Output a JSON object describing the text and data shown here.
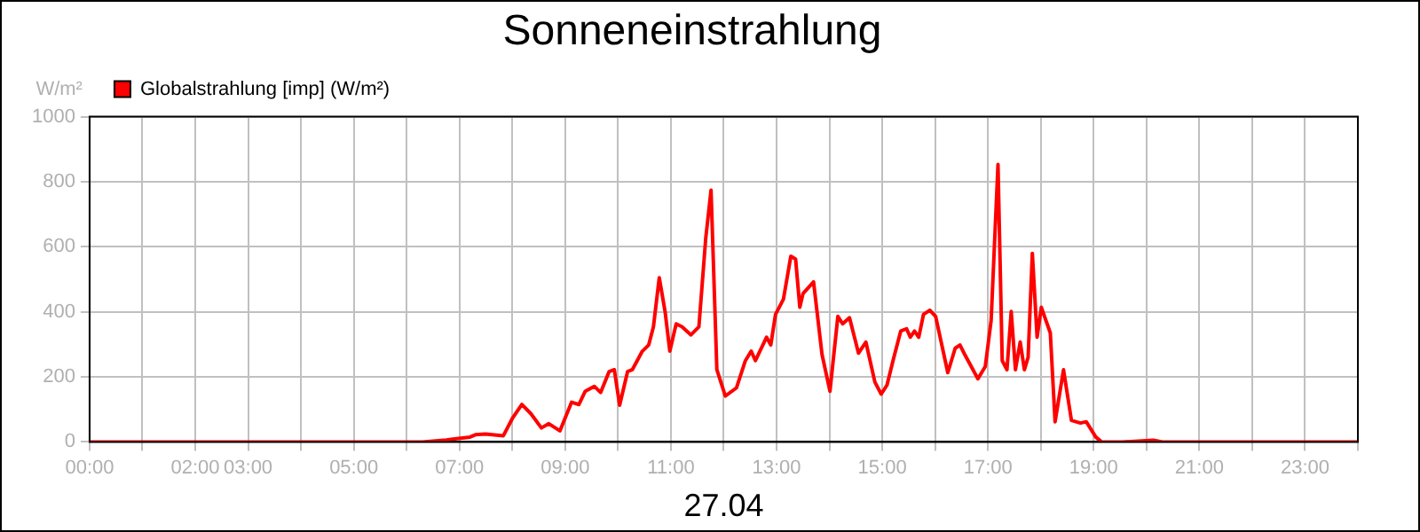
{
  "chart_data": {
    "type": "line",
    "title": "Sonneneinstrahlung",
    "xlabel": "27.04",
    "ylabel": "W/m²",
    "x": [
      0,
      6.3,
      6.75,
      7.2,
      7.3,
      7.49,
      7.83,
      8.0,
      8.18,
      8.35,
      8.55,
      8.69,
      8.9,
      9.12,
      9.26,
      9.38,
      9.55,
      9.67,
      9.83,
      9.93,
      10.03,
      10.18,
      10.27,
      10.46,
      10.58,
      10.67,
      10.78,
      10.89,
      10.98,
      11.1,
      11.21,
      11.38,
      11.53,
      11.66,
      11.76,
      11.87,
      12.03,
      12.24,
      12.41,
      12.52,
      12.6,
      12.81,
      12.89,
      12.98,
      13.13,
      13.27,
      13.36,
      13.44,
      13.5,
      13.7,
      13.86,
      14.01,
      14.16,
      14.25,
      14.38,
      14.55,
      14.69,
      14.86,
      14.98,
      15.09,
      15.21,
      15.35,
      15.46,
      15.53,
      15.61,
      15.69,
      15.78,
      15.9,
      16.01,
      16.24,
      16.38,
      16.47,
      16.56,
      16.81,
      16.95,
      17.06,
      17.19,
      17.27,
      17.36,
      17.44,
      17.52,
      17.61,
      17.69,
      17.76,
      17.84,
      17.93,
      18.01,
      18.18,
      18.27,
      18.43,
      18.58,
      18.75,
      18.86,
      19.04,
      19.15,
      19.55,
      20.13,
      20.3,
      24
    ],
    "series": [
      {
        "name": "Globalstrahlung [imp] (W/m²)",
        "color": "#ff0000",
        "values": [
          0,
          0,
          6,
          15,
          22,
          24,
          19,
          72,
          115,
          87,
          43,
          56,
          34,
          122,
          115,
          156,
          171,
          152,
          216,
          222,
          113,
          216,
          222,
          279,
          298,
          354,
          505,
          401,
          279,
          363,
          354,
          329,
          354,
          627,
          774,
          222,
          141,
          166,
          250,
          279,
          250,
          322,
          298,
          392,
          439,
          571,
          562,
          414,
          456,
          492,
          269,
          156,
          386,
          363,
          382,
          273,
          307,
          184,
          147,
          175,
          254,
          341,
          348,
          322,
          341,
          322,
          392,
          405,
          386,
          213,
          288,
          298,
          269,
          194,
          232,
          373,
          853,
          250,
          222,
          401,
          222,
          307,
          222,
          260,
          580,
          322,
          414,
          335,
          62,
          222,
          66,
          58,
          62,
          15,
          0,
          0,
          5,
          0,
          0
        ]
      }
    ],
    "xlim": [
      0,
      24
    ],
    "xticks": [
      {
        "value": 0,
        "label": "00:00"
      },
      {
        "value": 1,
        "label": null
      },
      {
        "value": 2,
        "label": "02:00"
      },
      {
        "value": 3,
        "label": "03:00"
      },
      {
        "value": 4,
        "label": null
      },
      {
        "value": 5,
        "label": "05:00"
      },
      {
        "value": 6,
        "label": null
      },
      {
        "value": 7,
        "label": "07:00"
      },
      {
        "value": 8,
        "label": null
      },
      {
        "value": 9,
        "label": "09:00"
      },
      {
        "value": 10,
        "label": null
      },
      {
        "value": 11,
        "label": "11:00"
      },
      {
        "value": 12,
        "label": null
      },
      {
        "value": 13,
        "label": "13:00"
      },
      {
        "value": 14,
        "label": null
      },
      {
        "value": 15,
        "label": "15:00"
      },
      {
        "value": 16,
        "label": null
      },
      {
        "value": 17,
        "label": "17:00"
      },
      {
        "value": 18,
        "label": null
      },
      {
        "value": 19,
        "label": "19:00"
      },
      {
        "value": 20,
        "label": null
      },
      {
        "value": 21,
        "label": "21:00"
      },
      {
        "value": 22,
        "label": null
      },
      {
        "value": 23,
        "label": "23:00"
      },
      {
        "value": 24,
        "label": null
      }
    ],
    "ylim": [
      0,
      1000
    ],
    "yticks": [
      0,
      200,
      400,
      600,
      800,
      1000
    ],
    "grid": true,
    "legend": "top left",
    "marker": "none",
    "line_style": "solid"
  }
}
